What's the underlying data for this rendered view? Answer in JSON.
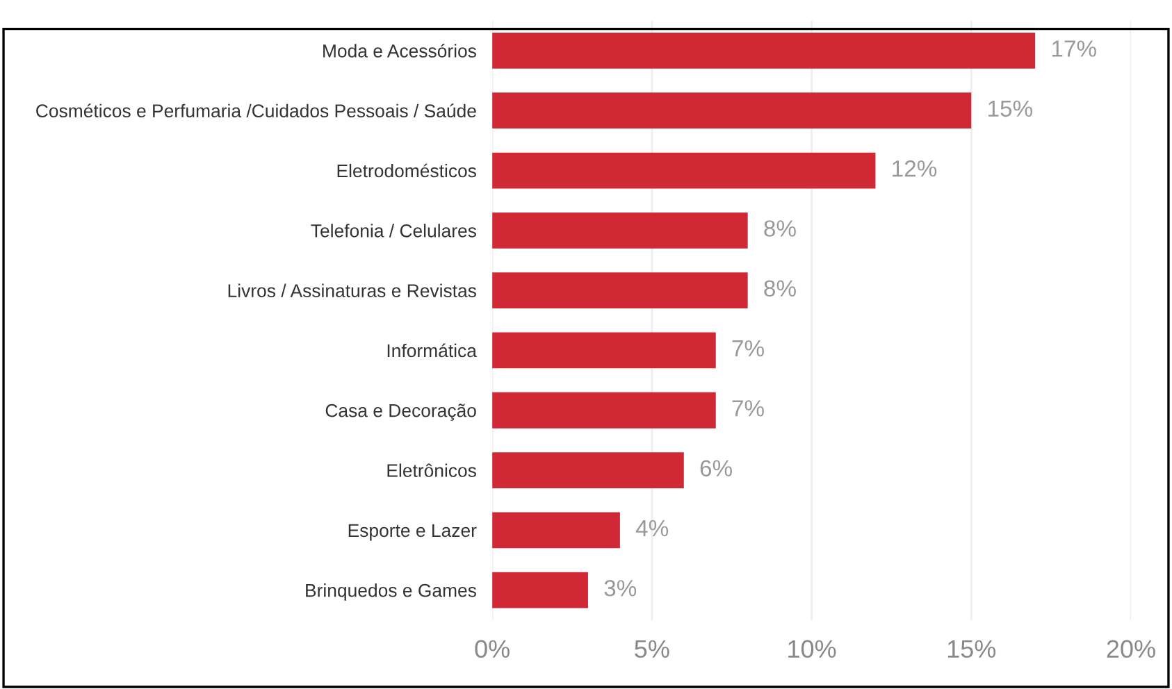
{
  "chart_data": {
    "type": "bar",
    "orientation": "horizontal",
    "categories": [
      "Moda e Acessórios",
      "Cosméticos e Perfumaria /Cuidados Pessoais / Saúde",
      "Eletrodomésticos",
      "Telefonia / Celulares",
      "Livros / Assinaturas e Revistas",
      "Informática",
      "Casa e Decoração",
      "Eletrônicos",
      "Esporte e Lazer",
      "Brinquedos e Games"
    ],
    "values": [
      17,
      15,
      12,
      8,
      8,
      7,
      7,
      6,
      4,
      3
    ],
    "value_labels": [
      "17%",
      "15%",
      "12%",
      "8%",
      "8%",
      "7%",
      "7%",
      "6%",
      "4%",
      "3%"
    ],
    "color": "#d12836",
    "xlim": [
      0,
      20
    ],
    "xticks": [
      {
        "value": 0,
        "label": "0%"
      },
      {
        "value": 5,
        "label": "5%"
      },
      {
        "value": 10,
        "label": "10%"
      },
      {
        "value": 15,
        "label": "15%"
      },
      {
        "value": 20,
        "label": "20%"
      }
    ],
    "grid": "x"
  }
}
